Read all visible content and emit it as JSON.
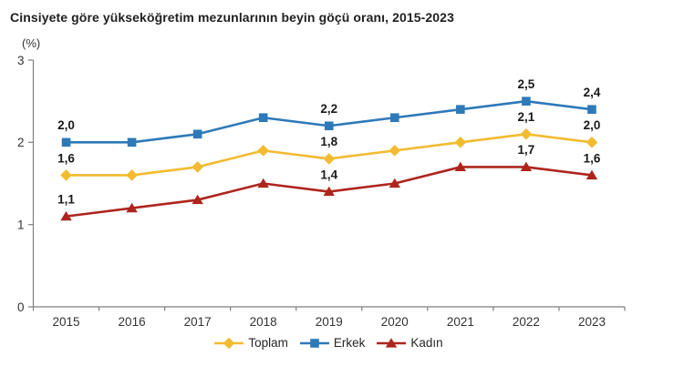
{
  "chart_data": {
    "type": "line",
    "title": "Cinsiyete göre yükseköğretim mezunlarının beyin göçü oranı, 2015-2023",
    "unit_label": "(%)",
    "x_labels": [
      "2015",
      "2016",
      "2017",
      "2018",
      "2019",
      "2020",
      "2021",
      "2022",
      "2023"
    ],
    "ylim": [
      0,
      3
    ],
    "yticks": [
      "0",
      "1",
      "2",
      "3"
    ],
    "grid": false,
    "legend_position": "bottom",
    "decimal_separator": ",",
    "axis_color": "#7f7f7f",
    "tick_label_color": "#333333",
    "data_label_color": "#1a1a1a",
    "series": [
      {
        "name": "Toplam",
        "color": "#F2BB30",
        "marker": "diamond",
        "values": [
          1.6,
          1.6,
          1.7,
          1.9,
          1.8,
          1.9,
          2.0,
          2.1,
          2.0
        ],
        "labeled_indices": [
          0,
          4,
          7,
          8
        ],
        "shown_labels": [
          "1,6",
          "1,8",
          "2,1",
          "2,0"
        ]
      },
      {
        "name": "Erkek",
        "color": "#2E79B8",
        "marker": "square",
        "values": [
          2.0,
          2.0,
          2.1,
          2.3,
          2.2,
          2.3,
          2.4,
          2.5,
          2.4
        ],
        "labeled_indices": [
          0,
          4,
          7,
          8
        ],
        "shown_labels": [
          "2,0",
          "2,2",
          "2,5",
          "2,4"
        ]
      },
      {
        "name": "Kadın",
        "color": "#AE251E",
        "marker": "triangle",
        "values": [
          1.1,
          1.2,
          1.3,
          1.5,
          1.4,
          1.5,
          1.7,
          1.7,
          1.6
        ],
        "labeled_indices": [
          0,
          4,
          7,
          8
        ],
        "shown_labels": [
          "1,1",
          "1,4",
          "1,7",
          "1,6"
        ]
      }
    ]
  }
}
